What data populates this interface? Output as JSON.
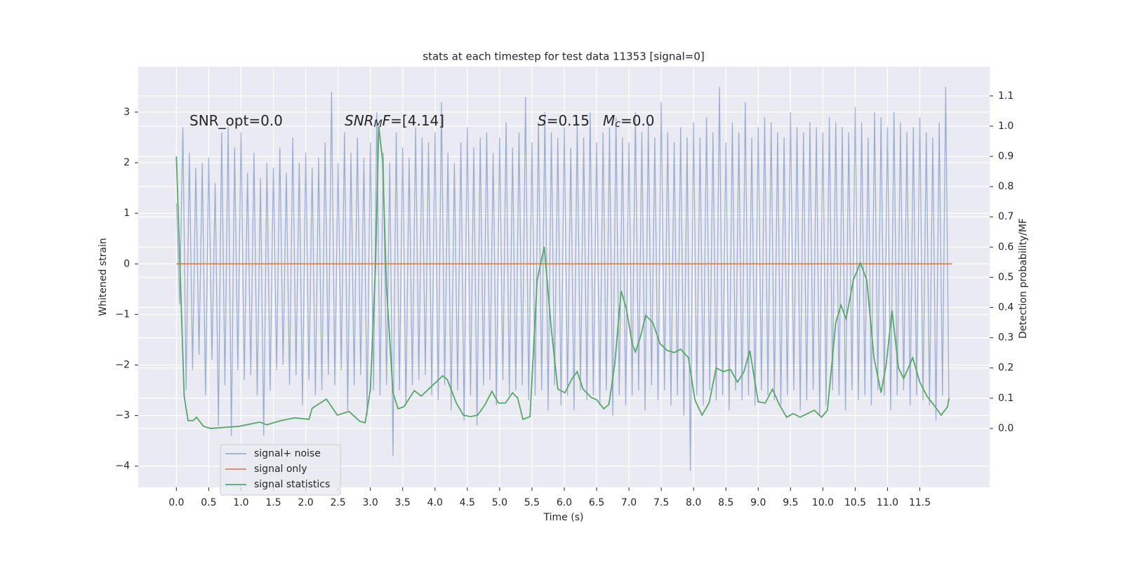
{
  "chart_data": {
    "type": "line",
    "title": "stats at each timestep for test data 11353 [signal=0]",
    "xlabel": "Time (s)",
    "ylabel": "Whitened strain",
    "y2label": "Detection probability/MF",
    "xlim": [
      -0.59,
      12.58
    ],
    "ylim": [
      -4.42,
      3.9
    ],
    "y2lim": [
      -0.195,
      1.197
    ],
    "xticks": [
      {
        "value": 0,
        "label": "0.0"
      },
      0.5,
      {
        "value": 1,
        "label": "1.0"
      },
      1.5,
      {
        "value": 2,
        "label": "2.0"
      },
      2.5,
      {
        "value": 3,
        "label": "3.0"
      },
      3.5,
      {
        "value": 4,
        "label": "4.0"
      },
      4.5,
      {
        "value": 5,
        "label": "5.0"
      },
      5.5,
      {
        "value": 6,
        "label": "6.0"
      },
      6.5,
      {
        "value": 7,
        "label": "7.0"
      },
      7.5,
      {
        "value": 8,
        "label": "8.0"
      },
      8.5,
      {
        "value": 9,
        "label": "9.0"
      },
      9.5,
      {
        "value": 10,
        "label": "10.0"
      },
      10.5,
      {
        "value": 11,
        "label": "11.0"
      },
      11.5
    ],
    "yticks": [
      {
        "value": -4,
        "label": "−4"
      },
      {
        "value": -3,
        "label": "−3"
      },
      {
        "value": -2,
        "label": "−2"
      },
      {
        "value": -1,
        "label": "−1"
      },
      0,
      1,
      2,
      3
    ],
    "y2ticks": [
      {
        "value": 0,
        "label": "0.0"
      },
      0.1,
      0.2,
      0.3,
      0.4,
      0.5,
      0.6,
      0.7,
      0.8,
      0.9,
      {
        "value": 1,
        "label": "1.0"
      },
      1.1
    ],
    "grid": true,
    "legend": "lower left",
    "annotations": [
      [
        {
          "text": "SNR_opt=0.0"
        }
      ],
      [
        {
          "text": "SNR",
          "style": "italic"
        },
        {
          "text": "M",
          "style": "italic-sub"
        },
        {
          "text": "F",
          "style": "italic"
        },
        {
          "text": "=[4.14]"
        }
      ],
      [
        {
          "text": "S",
          "style": "italic"
        },
        {
          "text": "=0.15"
        }
      ],
      [
        {
          "text": "M",
          "style": "italic"
        },
        {
          "text": "c",
          "style": "italic-sub"
        },
        {
          "text": "=0.0"
        }
      ]
    ],
    "series": [
      {
        "name": "signal+ noise",
        "color": "#4c72b0",
        "alpha": 0.5,
        "x": [
          0,
          0.05,
          0.1,
          0.15,
          0.2,
          0.25,
          0.3,
          0.35,
          0.4,
          0.45,
          0.5,
          0.55,
          0.6,
          0.65,
          0.7,
          0.75,
          0.8,
          0.85,
          0.9,
          0.95,
          1,
          1.05,
          1.1,
          1.15,
          1.2,
          1.25,
          1.3,
          1.35,
          1.4,
          1.45,
          1.5,
          1.55,
          1.6,
          1.65,
          1.7,
          1.75,
          1.8,
          1.85,
          1.9,
          1.95,
          2,
          2.05,
          2.1,
          2.15,
          2.2,
          2.25,
          2.3,
          2.35,
          2.4,
          2.45,
          2.5,
          2.55,
          2.6,
          2.65,
          2.7,
          2.75,
          2.8,
          2.85,
          2.9,
          2.95,
          3,
          3.05,
          3.1,
          3.15,
          3.2,
          3.25,
          3.3,
          3.35,
          3.4,
          3.45,
          3.5,
          3.55,
          3.6,
          3.65,
          3.7,
          3.75,
          3.8,
          3.85,
          3.9,
          3.95,
          4,
          4.05,
          4.1,
          4.15,
          4.2,
          4.25,
          4.3,
          4.35,
          4.4,
          4.45,
          4.5,
          4.55,
          4.6,
          4.65,
          4.7,
          4.75,
          4.8,
          4.85,
          4.9,
          4.95,
          5,
          5.05,
          5.1,
          5.15,
          5.2,
          5.25,
          5.3,
          5.35,
          5.4,
          5.45,
          5.5,
          5.55,
          5.6,
          5.65,
          5.7,
          5.75,
          5.8,
          5.85,
          5.9,
          5.95,
          6,
          6.05,
          6.1,
          6.15,
          6.2,
          6.25,
          6.3,
          6.35,
          6.4,
          6.45,
          6.5,
          6.55,
          6.6,
          6.65,
          6.7,
          6.75,
          6.8,
          6.85,
          6.9,
          6.95,
          7,
          7.05,
          7.1,
          7.15,
          7.2,
          7.25,
          7.3,
          7.35,
          7.4,
          7.45,
          7.5,
          7.55,
          7.6,
          7.65,
          7.7,
          7.75,
          7.8,
          7.85,
          7.9,
          7.95,
          8,
          8.05,
          8.1,
          8.15,
          8.2,
          8.25,
          8.3,
          8.35,
          8.4,
          8.45,
          8.5,
          8.55,
          8.6,
          8.65,
          8.7,
          8.75,
          8.8,
          8.85,
          8.9,
          8.95,
          9,
          9.05,
          9.1,
          9.15,
          9.2,
          9.25,
          9.3,
          9.35,
          9.4,
          9.45,
          9.5,
          9.55,
          9.6,
          9.65,
          9.7,
          9.75,
          9.8,
          9.85,
          9.9,
          9.95,
          10,
          10.05,
          10.1,
          10.15,
          10.2,
          10.25,
          10.3,
          10.35,
          10.4,
          10.45,
          10.5,
          10.55,
          10.6,
          10.65,
          10.7,
          10.75,
          10.8,
          10.85,
          10.9,
          10.95,
          11,
          11.05,
          11.1,
          11.15,
          11.2,
          11.25,
          11.3,
          11.35,
          11.4,
          11.45,
          11.5,
          11.55,
          11.6,
          11.65,
          11.7,
          11.75,
          11.8,
          11.85,
          11.9,
          11.95
        ],
        "values": [
          1.2,
          -0.8,
          2.7,
          -2.5,
          2.2,
          -2.1,
          1.9,
          -1.8,
          2.0,
          -2.6,
          2.1,
          -1.9,
          1.6,
          -3.2,
          2.6,
          -2.4,
          2.7,
          -3.4,
          2.3,
          -2.1,
          2.6,
          -2.3,
          1.8,
          -2.2,
          2.2,
          -2.6,
          1.7,
          -3.4,
          2.0,
          -2.5,
          1.9,
          -2.1,
          2.3,
          -2.0,
          1.8,
          -2.4,
          2.5,
          -2.2,
          2.0,
          -2.8,
          2.2,
          -2.3,
          1.9,
          -2.6,
          2.1,
          -2.5,
          2.4,
          -2.2,
          3.4,
          -2.4,
          2.0,
          -2.1,
          2.6,
          -2.9,
          2.2,
          -2.4,
          2.5,
          -2.2,
          2.1,
          -3.0,
          2.4,
          -2.5,
          3.0,
          -2.6,
          2.2,
          -2.4,
          2.0,
          -3.8,
          2.6,
          -2.5,
          2.3,
          -2.8,
          2.1,
          -2.4,
          2.7,
          -2.3,
          2.5,
          -2.2,
          2.4,
          -2.6,
          2.6,
          -2.7,
          3.2,
          -2.4,
          2.2,
          -2.9,
          2.0,
          -2.5,
          2.4,
          -3.1,
          2.7,
          -2.6,
          2.3,
          -3.2,
          2.5,
          -2.4,
          2.6,
          -2.3,
          2.2,
          -2.8,
          2.5,
          -2.3,
          2.8,
          -2.6,
          2.3,
          -2.5,
          2.6,
          -2.4,
          3.3,
          -2.7,
          2.4,
          -2.6,
          2.8,
          -2.5,
          3.0,
          -2.9,
          2.6,
          -2.4,
          2.5,
          -2.8,
          2.7,
          -2.6,
          2.3,
          -2.9,
          2.8,
          -2.5,
          2.5,
          -2.7,
          3.0,
          -2.6,
          2.4,
          -2.8,
          2.6,
          -2.5,
          2.7,
          -3.0,
          2.9,
          -2.6,
          2.5,
          -2.8,
          2.4,
          -2.6,
          3.0,
          -2.5,
          2.6,
          -2.9,
          2.8,
          -2.4,
          2.5,
          -2.7,
          3.2,
          -2.5,
          2.6,
          -2.8,
          2.4,
          -2.6,
          2.7,
          -3.0,
          2.5,
          -4.1,
          2.8,
          -2.6,
          2.5,
          -2.8,
          2.9,
          -2.5,
          2.6,
          -2.7,
          3.5,
          -2.6,
          2.4,
          -2.9,
          2.8,
          -2.5,
          2.6,
          -2.7,
          3.2,
          -2.6,
          2.5,
          -2.8,
          2.7,
          -2.5,
          2.9,
          -2.6,
          2.8,
          -2.7,
          2.6,
          -2.8,
          2.5,
          -2.6,
          3.0,
          -2.5,
          2.7,
          -2.9,
          2.6,
          -2.7,
          2.8,
          -2.5,
          2.7,
          -3.0,
          2.6,
          -2.8,
          2.9,
          -2.5,
          2.8,
          -2.6,
          2.7,
          -2.9,
          2.6,
          -2.5,
          3.1,
          -2.7,
          2.8,
          -2.6,
          2.5,
          -2.8,
          3.0,
          -2.5,
          2.9,
          -2.6,
          2.7,
          -2.9,
          3.0,
          -2.6,
          2.8,
          -2.5,
          2.6,
          -2.8,
          2.7,
          -2.6,
          2.9,
          -2.7,
          2.6,
          -2.8,
          2.5,
          -3.1,
          2.8,
          -2.6,
          3.5,
          -2.7
        ]
      },
      {
        "name": "signal only",
        "color": "#dd8452",
        "x": [
          0,
          12
        ],
        "values": [
          0,
          0
        ]
      },
      {
        "name": "signal statistics",
        "color": "#55a868",
        "axis": "y2",
        "x": [
          0,
          0.12,
          0.18,
          0.26,
          0.31,
          0.42,
          0.53,
          0.97,
          1.29,
          1.4,
          1.62,
          1.83,
          2.05,
          2.1,
          2.32,
          2.49,
          2.67,
          2.84,
          2.92,
          3.0,
          3.08,
          3.13,
          3.19,
          3.25,
          3.35,
          3.43,
          3.52,
          3.68,
          3.79,
          3.9,
          4.12,
          4.19,
          4.33,
          4.44,
          4.55,
          4.66,
          4.77,
          4.88,
          4.98,
          5.09,
          5.2,
          5.28,
          5.36,
          5.47,
          5.58,
          5.69,
          5.8,
          5.9,
          6.01,
          6.12,
          6.2,
          6.29,
          6.42,
          6.5,
          6.61,
          6.69,
          6.78,
          6.88,
          6.96,
          7.05,
          7.1,
          7.18,
          7.26,
          7.37,
          7.48,
          7.59,
          7.7,
          7.8,
          7.92,
          8.02,
          8.13,
          8.24,
          8.35,
          8.46,
          8.57,
          8.68,
          8.78,
          8.87,
          9.0,
          9.11,
          9.22,
          9.33,
          9.44,
          9.54,
          9.65,
          9.76,
          9.87,
          9.98,
          10.07,
          10.2,
          10.28,
          10.36,
          10.47,
          10.58,
          10.68,
          10.79,
          10.9,
          10.98,
          11.07,
          11.17,
          11.25,
          11.39,
          11.5,
          11.61,
          11.72,
          11.83,
          11.93,
          11.95
        ],
        "values": [
          0.9,
          0.107,
          0.026,
          0.026,
          0.037,
          0.007,
          0.0,
          0.007,
          0.021,
          0.012,
          0.026,
          0.035,
          0.03,
          0.067,
          0.097,
          0.044,
          0.056,
          0.023,
          0.019,
          0.128,
          0.536,
          1.0,
          0.884,
          0.466,
          0.118,
          0.065,
          0.072,
          0.125,
          0.107,
          0.13,
          0.174,
          0.162,
          0.084,
          0.044,
          0.039,
          0.044,
          0.077,
          0.123,
          0.084,
          0.084,
          0.118,
          0.1,
          0.03,
          0.039,
          0.49,
          0.601,
          0.327,
          0.13,
          0.118,
          0.165,
          0.188,
          0.13,
          0.102,
          0.095,
          0.065,
          0.079,
          0.211,
          0.455,
          0.397,
          0.281,
          0.253,
          0.304,
          0.374,
          0.35,
          0.281,
          0.258,
          0.251,
          0.262,
          0.234,
          0.095,
          0.044,
          0.084,
          0.2,
          0.188,
          0.195,
          0.153,
          0.188,
          0.258,
          0.088,
          0.084,
          0.13,
          0.077,
          0.037,
          0.049,
          0.037,
          0.049,
          0.06,
          0.037,
          0.06,
          0.35,
          0.408,
          0.362,
          0.49,
          0.548,
          0.49,
          0.234,
          0.118,
          0.211,
          0.39,
          0.2,
          0.165,
          0.234,
          0.153,
          0.107,
          0.077,
          0.044,
          0.072,
          0.1
        ]
      }
    ]
  }
}
